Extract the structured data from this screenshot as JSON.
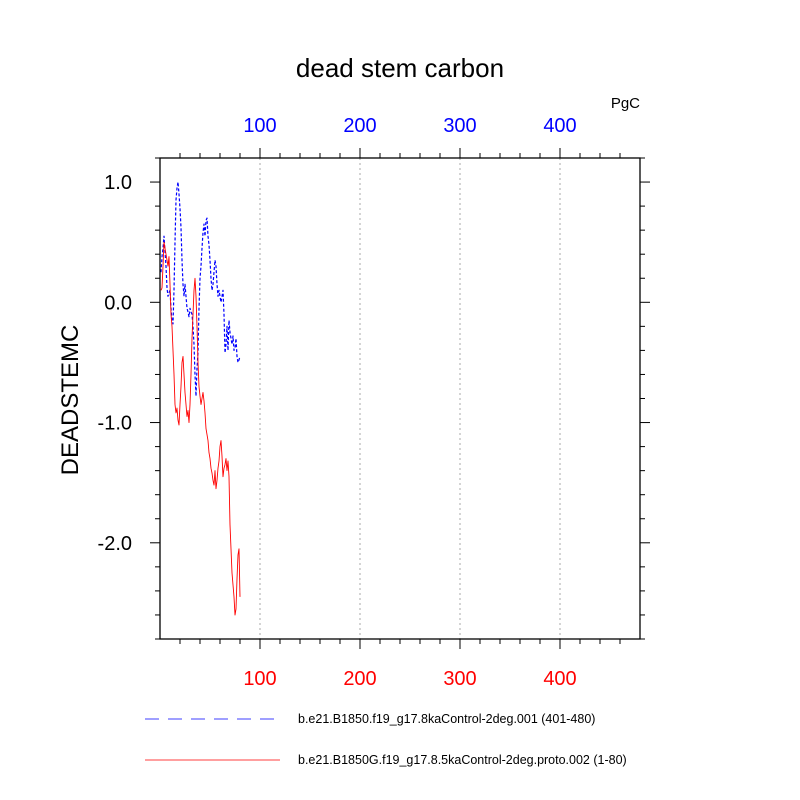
{
  "chart_data": {
    "type": "line",
    "title": "dead stem carbon",
    "units": "PgC",
    "ylabel": "DEADSTEMC",
    "xlim": [
      0,
      480
    ],
    "ylim": [
      -2.8,
      1.2
    ],
    "y_ticks": [
      1.0,
      0.0,
      -1.0,
      -2.0
    ],
    "y_tick_labels": [
      "1.0",
      "0.0",
      "-1.0",
      "-2.0"
    ],
    "top_axis": {
      "color": "#0000ff",
      "ticks": [
        100,
        200,
        300,
        400
      ],
      "tick_labels": [
        "100",
        "200",
        "300",
        "400"
      ]
    },
    "bottom_axis": {
      "color": "#ff0000",
      "ticks": [
        100,
        200,
        300,
        400
      ],
      "tick_labels": [
        "100",
        "200",
        "300",
        "400"
      ]
    },
    "grid": "vertical dotted at x ticks",
    "series": [
      {
        "name": "b.e21.B1850.f19_g17.8kaControl-2deg.001 (401-480)",
        "color": "#0000ff",
        "style": "dashed",
        "x": [
          1,
          2,
          3,
          4,
          5,
          6,
          7,
          8,
          9,
          10,
          11,
          12,
          13,
          14,
          15,
          16,
          17,
          18,
          19,
          20,
          21,
          22,
          23,
          24,
          25,
          26,
          27,
          28,
          29,
          30,
          31,
          32,
          33,
          34,
          35,
          36,
          37,
          38,
          39,
          40,
          41,
          42,
          43,
          44,
          45,
          46,
          47,
          48,
          49,
          50,
          51,
          52,
          53,
          54,
          55,
          56,
          57,
          58,
          59,
          60,
          61,
          62,
          63,
          64,
          65,
          66,
          67,
          68,
          69,
          70,
          71,
          72,
          73,
          74,
          75,
          76,
          77,
          78,
          79,
          80
        ],
        "values": [
          0.25,
          0.38,
          0.45,
          0.55,
          0.42,
          0.3,
          0.12,
          0.05,
          0.08,
          0.1,
          -0.05,
          -0.15,
          -0.18,
          0.1,
          0.5,
          0.85,
          0.95,
          1.0,
          0.9,
          0.78,
          0.62,
          0.35,
          0.15,
          0.05,
          0.15,
          0.05,
          -0.05,
          -0.08,
          -0.12,
          -0.05,
          -0.08,
          -0.1,
          -0.2,
          -0.35,
          -0.6,
          -0.78,
          -0.55,
          -0.42,
          -0.05,
          0.2,
          0.3,
          0.45,
          0.58,
          0.65,
          0.55,
          0.68,
          0.7,
          0.55,
          0.48,
          0.35,
          0.2,
          0.1,
          0.15,
          0.25,
          0.35,
          0.3,
          0.15,
          0.05,
          0.1,
          0.05,
          0.0,
          0.05,
          0.1,
          -0.1,
          -0.42,
          -0.35,
          -0.2,
          -0.4,
          -0.15,
          -0.25,
          -0.3,
          -0.35,
          -0.28,
          -0.4,
          -0.38,
          -0.3,
          -0.45,
          -0.5,
          -0.48,
          -0.45
        ]
      },
      {
        "name": "b.e21.B1850G.f19_g17.8.5kaControl-2deg.proto.002 (1-80)",
        "color": "#ff0000",
        "style": "solid",
        "x": [
          1,
          2,
          3,
          4,
          5,
          6,
          7,
          8,
          9,
          10,
          11,
          12,
          13,
          14,
          15,
          16,
          17,
          18,
          19,
          20,
          21,
          22,
          23,
          24,
          25,
          26,
          27,
          28,
          29,
          30,
          31,
          32,
          33,
          34,
          35,
          36,
          37,
          38,
          39,
          40,
          41,
          42,
          43,
          44,
          45,
          46,
          47,
          48,
          49,
          50,
          51,
          52,
          53,
          54,
          55,
          56,
          57,
          58,
          59,
          60,
          61,
          62,
          63,
          64,
          65,
          66,
          67,
          68,
          69,
          70,
          71,
          72,
          73,
          74,
          75,
          76,
          77,
          78,
          79,
          80
        ],
        "values": [
          0.1,
          0.12,
          0.3,
          0.5,
          0.45,
          0.4,
          0.35,
          0.3,
          0.38,
          0.15,
          -0.1,
          -0.2,
          -0.4,
          -0.6,
          -0.85,
          -0.92,
          -0.88,
          -0.98,
          -1.02,
          -0.85,
          -0.7,
          -0.5,
          -0.45,
          -0.6,
          -0.75,
          -0.85,
          -0.95,
          -0.9,
          -1.0,
          -0.85,
          -0.6,
          -0.3,
          -0.1,
          0.1,
          0.2,
          0.05,
          -0.2,
          -0.5,
          -0.7,
          -0.78,
          -0.85,
          -0.8,
          -0.75,
          -0.82,
          -0.92,
          -1.05,
          -1.1,
          -1.15,
          -1.25,
          -1.3,
          -1.38,
          -1.42,
          -1.48,
          -1.52,
          -1.4,
          -1.55,
          -1.48,
          -1.38,
          -1.32,
          -1.2,
          -1.15,
          -1.28,
          -1.45,
          -1.38,
          -1.35,
          -1.3,
          -1.4,
          -1.32,
          -1.45,
          -1.85,
          -2.05,
          -2.25,
          -2.35,
          -2.45,
          -2.6,
          -2.55,
          -2.3,
          -2.1,
          -2.05,
          -2.45
        ]
      }
    ]
  }
}
